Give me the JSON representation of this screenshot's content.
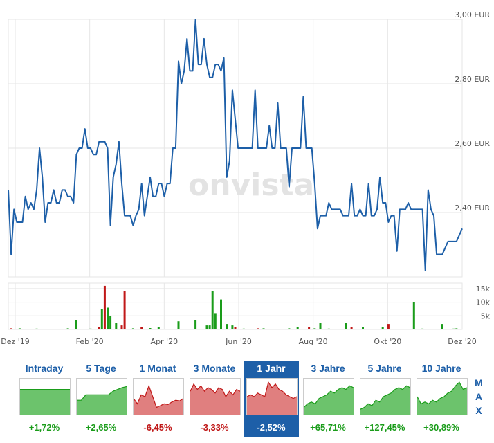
{
  "chart_data": {
    "type": "line",
    "watermark": "onvista",
    "currency_axis": {
      "ylim": [
        2.2,
        3.0
      ],
      "ticks": [
        3.0,
        2.8,
        2.6,
        2.4
      ],
      "tick_labels": [
        "3,00 EUR",
        "2,80 EUR",
        "2,60 EUR",
        "2,40 EUR"
      ]
    },
    "x_ticks": [
      "Dez '19",
      "Feb '20",
      "Apr '20",
      "Jun '20",
      "Aug '20",
      "Okt '20",
      "Dez '20"
    ],
    "series": [
      {
        "values": [
          2.47,
          2.27,
          2.41,
          2.37,
          2.37,
          2.37,
          2.45,
          2.41,
          2.43,
          2.41,
          2.47,
          2.6,
          2.51,
          2.37,
          2.43,
          2.43,
          2.47,
          2.43,
          2.43,
          2.47,
          2.47,
          2.45,
          2.45,
          2.43,
          2.58,
          2.6,
          2.6,
          2.66,
          2.6,
          2.6,
          2.58,
          2.58,
          2.62,
          2.62,
          2.62,
          2.6,
          2.36,
          2.51,
          2.55,
          2.62,
          2.49,
          2.39,
          2.39,
          2.39,
          2.36,
          2.39,
          2.41,
          2.49,
          2.39,
          2.45,
          2.51,
          2.45,
          2.45,
          2.49,
          2.49,
          2.45,
          2.49,
          2.49,
          2.6,
          2.6,
          2.87,
          2.8,
          2.84,
          2.94,
          2.84,
          2.84,
          3.0,
          2.86,
          2.86,
          2.94,
          2.86,
          2.82,
          2.82,
          2.86,
          2.86,
          2.84,
          2.88,
          2.51,
          2.56,
          2.78,
          2.69,
          2.6,
          2.6,
          2.6,
          2.6,
          2.6,
          2.6,
          2.78,
          2.6,
          2.6,
          2.6,
          2.6,
          2.67,
          2.6,
          2.6,
          2.74,
          2.6,
          2.6,
          2.6,
          2.48,
          2.6,
          2.6,
          2.6,
          2.6,
          2.76,
          2.6,
          2.6,
          2.6,
          2.49,
          2.35,
          2.39,
          2.39,
          2.39,
          2.43,
          2.41,
          2.41,
          2.41,
          2.41,
          2.39,
          2.39,
          2.39,
          2.49,
          2.39,
          2.39,
          2.41,
          2.39,
          2.39,
          2.49,
          2.39,
          2.39,
          2.41,
          2.51,
          2.43,
          2.43,
          2.37,
          2.39,
          2.39,
          2.28,
          2.41,
          2.41,
          2.41,
          2.43,
          2.41,
          2.41,
          2.41,
          2.41,
          2.41,
          2.22,
          2.47,
          2.41,
          2.39,
          2.27,
          2.27,
          2.27,
          2.29,
          2.31,
          2.31,
          2.31,
          2.31,
          2.33,
          2.35
        ],
        "color": "#1d5fa8"
      }
    ],
    "volume": {
      "ylim": [
        0,
        17000
      ],
      "ticks": [
        15000,
        10000,
        5000
      ],
      "tick_labels": [
        "15k",
        "10k",
        "5k"
      ],
      "bars": [
        {
          "i": 1,
          "v": 400,
          "c": "r"
        },
        {
          "i": 4,
          "v": 400,
          "c": "g"
        },
        {
          "i": 10,
          "v": 300,
          "c": "g"
        },
        {
          "i": 21,
          "v": 400,
          "c": "g"
        },
        {
          "i": 24,
          "v": 3500,
          "c": "g"
        },
        {
          "i": 29,
          "v": 300,
          "c": "g"
        },
        {
          "i": 32,
          "v": 1000,
          "c": "r"
        },
        {
          "i": 33,
          "v": 7500,
          "c": "g"
        },
        {
          "i": 34,
          "v": 16000,
          "c": "r"
        },
        {
          "i": 35,
          "v": 8000,
          "c": "g"
        },
        {
          "i": 36,
          "v": 5000,
          "c": "g"
        },
        {
          "i": 38,
          "v": 2500,
          "c": "g"
        },
        {
          "i": 40,
          "v": 1500,
          "c": "r"
        },
        {
          "i": 41,
          "v": 14000,
          "c": "r"
        },
        {
          "i": 44,
          "v": 400,
          "c": "g"
        },
        {
          "i": 47,
          "v": 1000,
          "c": "r"
        },
        {
          "i": 50,
          "v": 500,
          "c": "g"
        },
        {
          "i": 53,
          "v": 1000,
          "c": "g"
        },
        {
          "i": 60,
          "v": 3000,
          "c": "g"
        },
        {
          "i": 66,
          "v": 3500,
          "c": "g"
        },
        {
          "i": 70,
          "v": 1500,
          "c": "g"
        },
        {
          "i": 71,
          "v": 1500,
          "c": "g"
        },
        {
          "i": 72,
          "v": 14000,
          "c": "g"
        },
        {
          "i": 73,
          "v": 6000,
          "c": "g"
        },
        {
          "i": 75,
          "v": 11000,
          "c": "g"
        },
        {
          "i": 77,
          "v": 2000,
          "c": "g"
        },
        {
          "i": 79,
          "v": 1500,
          "c": "g"
        },
        {
          "i": 80,
          "v": 1000,
          "c": "r"
        },
        {
          "i": 83,
          "v": 300,
          "c": "g"
        },
        {
          "i": 88,
          "v": 400,
          "c": "r"
        },
        {
          "i": 90,
          "v": 400,
          "c": "g"
        },
        {
          "i": 99,
          "v": 400,
          "c": "g"
        },
        {
          "i": 102,
          "v": 1000,
          "c": "g"
        },
        {
          "i": 106,
          "v": 1000,
          "c": "r"
        },
        {
          "i": 108,
          "v": 400,
          "c": "g"
        },
        {
          "i": 110,
          "v": 2500,
          "c": "g"
        },
        {
          "i": 113,
          "v": 300,
          "c": "g"
        },
        {
          "i": 119,
          "v": 2500,
          "c": "g"
        },
        {
          "i": 121,
          "v": 1000,
          "c": "r"
        },
        {
          "i": 125,
          "v": 1000,
          "c": "g"
        },
        {
          "i": 132,
          "v": 1000,
          "c": "g"
        },
        {
          "i": 134,
          "v": 2000,
          "c": "r"
        },
        {
          "i": 143,
          "v": 10000,
          "c": "g"
        },
        {
          "i": 146,
          "v": 300,
          "c": "g"
        },
        {
          "i": 153,
          "v": 2000,
          "c": "g"
        },
        {
          "i": 157,
          "v": 300,
          "c": "g"
        },
        {
          "i": 158,
          "v": 400,
          "c": "g"
        }
      ]
    }
  },
  "periods": [
    {
      "label": "Intraday",
      "change": "+1,72%",
      "positive": true,
      "active": false,
      "fill": "green",
      "spark": [
        0.3,
        0.3,
        0.3,
        0.3,
        0.3,
        0.3,
        0.3,
        0.3
      ]
    },
    {
      "label": "5 Tage",
      "change": "+2,65%",
      "positive": true,
      "active": false,
      "fill": "green",
      "spark": [
        0.6,
        0.6,
        0.45,
        0.45,
        0.45,
        0.45,
        0.45,
        0.45,
        0.35,
        0.3,
        0.25,
        0.22
      ]
    },
    {
      "label": "1 Monat",
      "change": "-6,45%",
      "positive": false,
      "active": false,
      "fill": "red",
      "spark": [
        0.55,
        0.7,
        0.45,
        0.5,
        0.2,
        0.5,
        0.8,
        0.75,
        0.7,
        0.72,
        0.65,
        0.6,
        0.62,
        0.55
      ]
    },
    {
      "label": "3 Monate",
      "change": "-3,33%",
      "positive": false,
      "active": false,
      "fill": "red",
      "spark": [
        0.35,
        0.15,
        0.3,
        0.2,
        0.35,
        0.25,
        0.3,
        0.4,
        0.25,
        0.3,
        0.5,
        0.35,
        0.45,
        0.3,
        0.35
      ]
    },
    {
      "label": "1 Jahr",
      "change": "-2,52%",
      "positive": false,
      "active": true,
      "fill": "red",
      "spark": [
        0.5,
        0.45,
        0.5,
        0.4,
        0.45,
        0.5,
        0.1,
        0.25,
        0.15,
        0.3,
        0.35,
        0.45,
        0.5,
        0.55,
        0.5
      ]
    },
    {
      "label": "3 Jahre",
      "change": "+65,71%",
      "positive": true,
      "active": false,
      "fill": "green",
      "spark": [
        0.8,
        0.7,
        0.65,
        0.7,
        0.55,
        0.5,
        0.45,
        0.35,
        0.4,
        0.3,
        0.25,
        0.3,
        0.2,
        0.25
      ]
    },
    {
      "label": "5 Jahre",
      "change": "+127,45%",
      "positive": true,
      "active": false,
      "fill": "green",
      "spark": [
        0.85,
        0.8,
        0.7,
        0.75,
        0.6,
        0.65,
        0.5,
        0.45,
        0.4,
        0.3,
        0.25,
        0.3,
        0.2,
        0.25
      ]
    },
    {
      "label": "10 Jahre",
      "change": "+30,89%",
      "positive": true,
      "active": false,
      "fill": "green",
      "spark": [
        0.5,
        0.7,
        0.65,
        0.7,
        0.6,
        0.65,
        0.55,
        0.5,
        0.4,
        0.35,
        0.2,
        0.1,
        0.3,
        0.25
      ]
    }
  ],
  "max_label": [
    "M",
    "A",
    "X"
  ],
  "colors": {
    "line": "#1d5fa8",
    "grid": "#e6e6e6",
    "up": "#1a9c1a",
    "down": "#c01818",
    "up_fill": "#6cc36c",
    "down_fill": "#e07f7f",
    "active_tab": "#1d5fa8"
  }
}
